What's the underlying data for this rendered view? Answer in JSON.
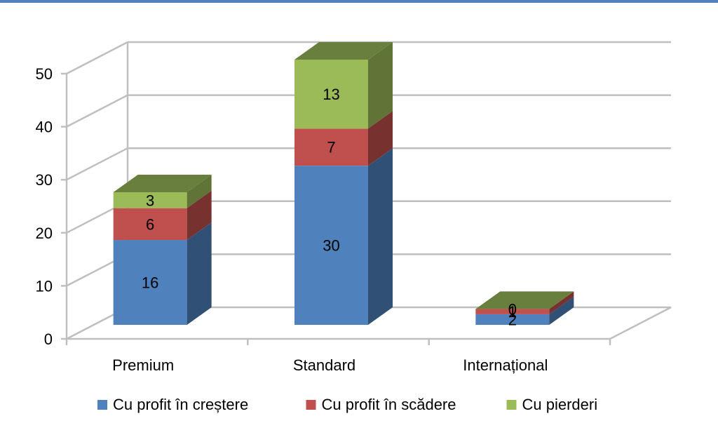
{
  "chart_data": {
    "type": "bar",
    "stacked": true,
    "three_d": true,
    "categories": [
      "Premium",
      "Standard",
      "Internațional"
    ],
    "series": [
      {
        "name": "Cu profit în creștere",
        "values": [
          16,
          30,
          2
        ],
        "color": "#4F81BD"
      },
      {
        "name": "Cu profit în scădere",
        "values": [
          6,
          7,
          1
        ],
        "color": "#C0504D"
      },
      {
        "name": "Cu pierderi",
        "values": [
          3,
          13,
          0
        ],
        "color": "#9BBB59"
      }
    ],
    "ylim": [
      0,
      50
    ],
    "yticks": [
      0,
      10,
      20,
      30,
      40,
      50
    ],
    "grid": true,
    "legend": "bottom",
    "title": "",
    "xlabel": "",
    "ylabel": ""
  },
  "colors": {
    "top_border": "#4F81BD",
    "gridline": "#BFBFBF"
  }
}
